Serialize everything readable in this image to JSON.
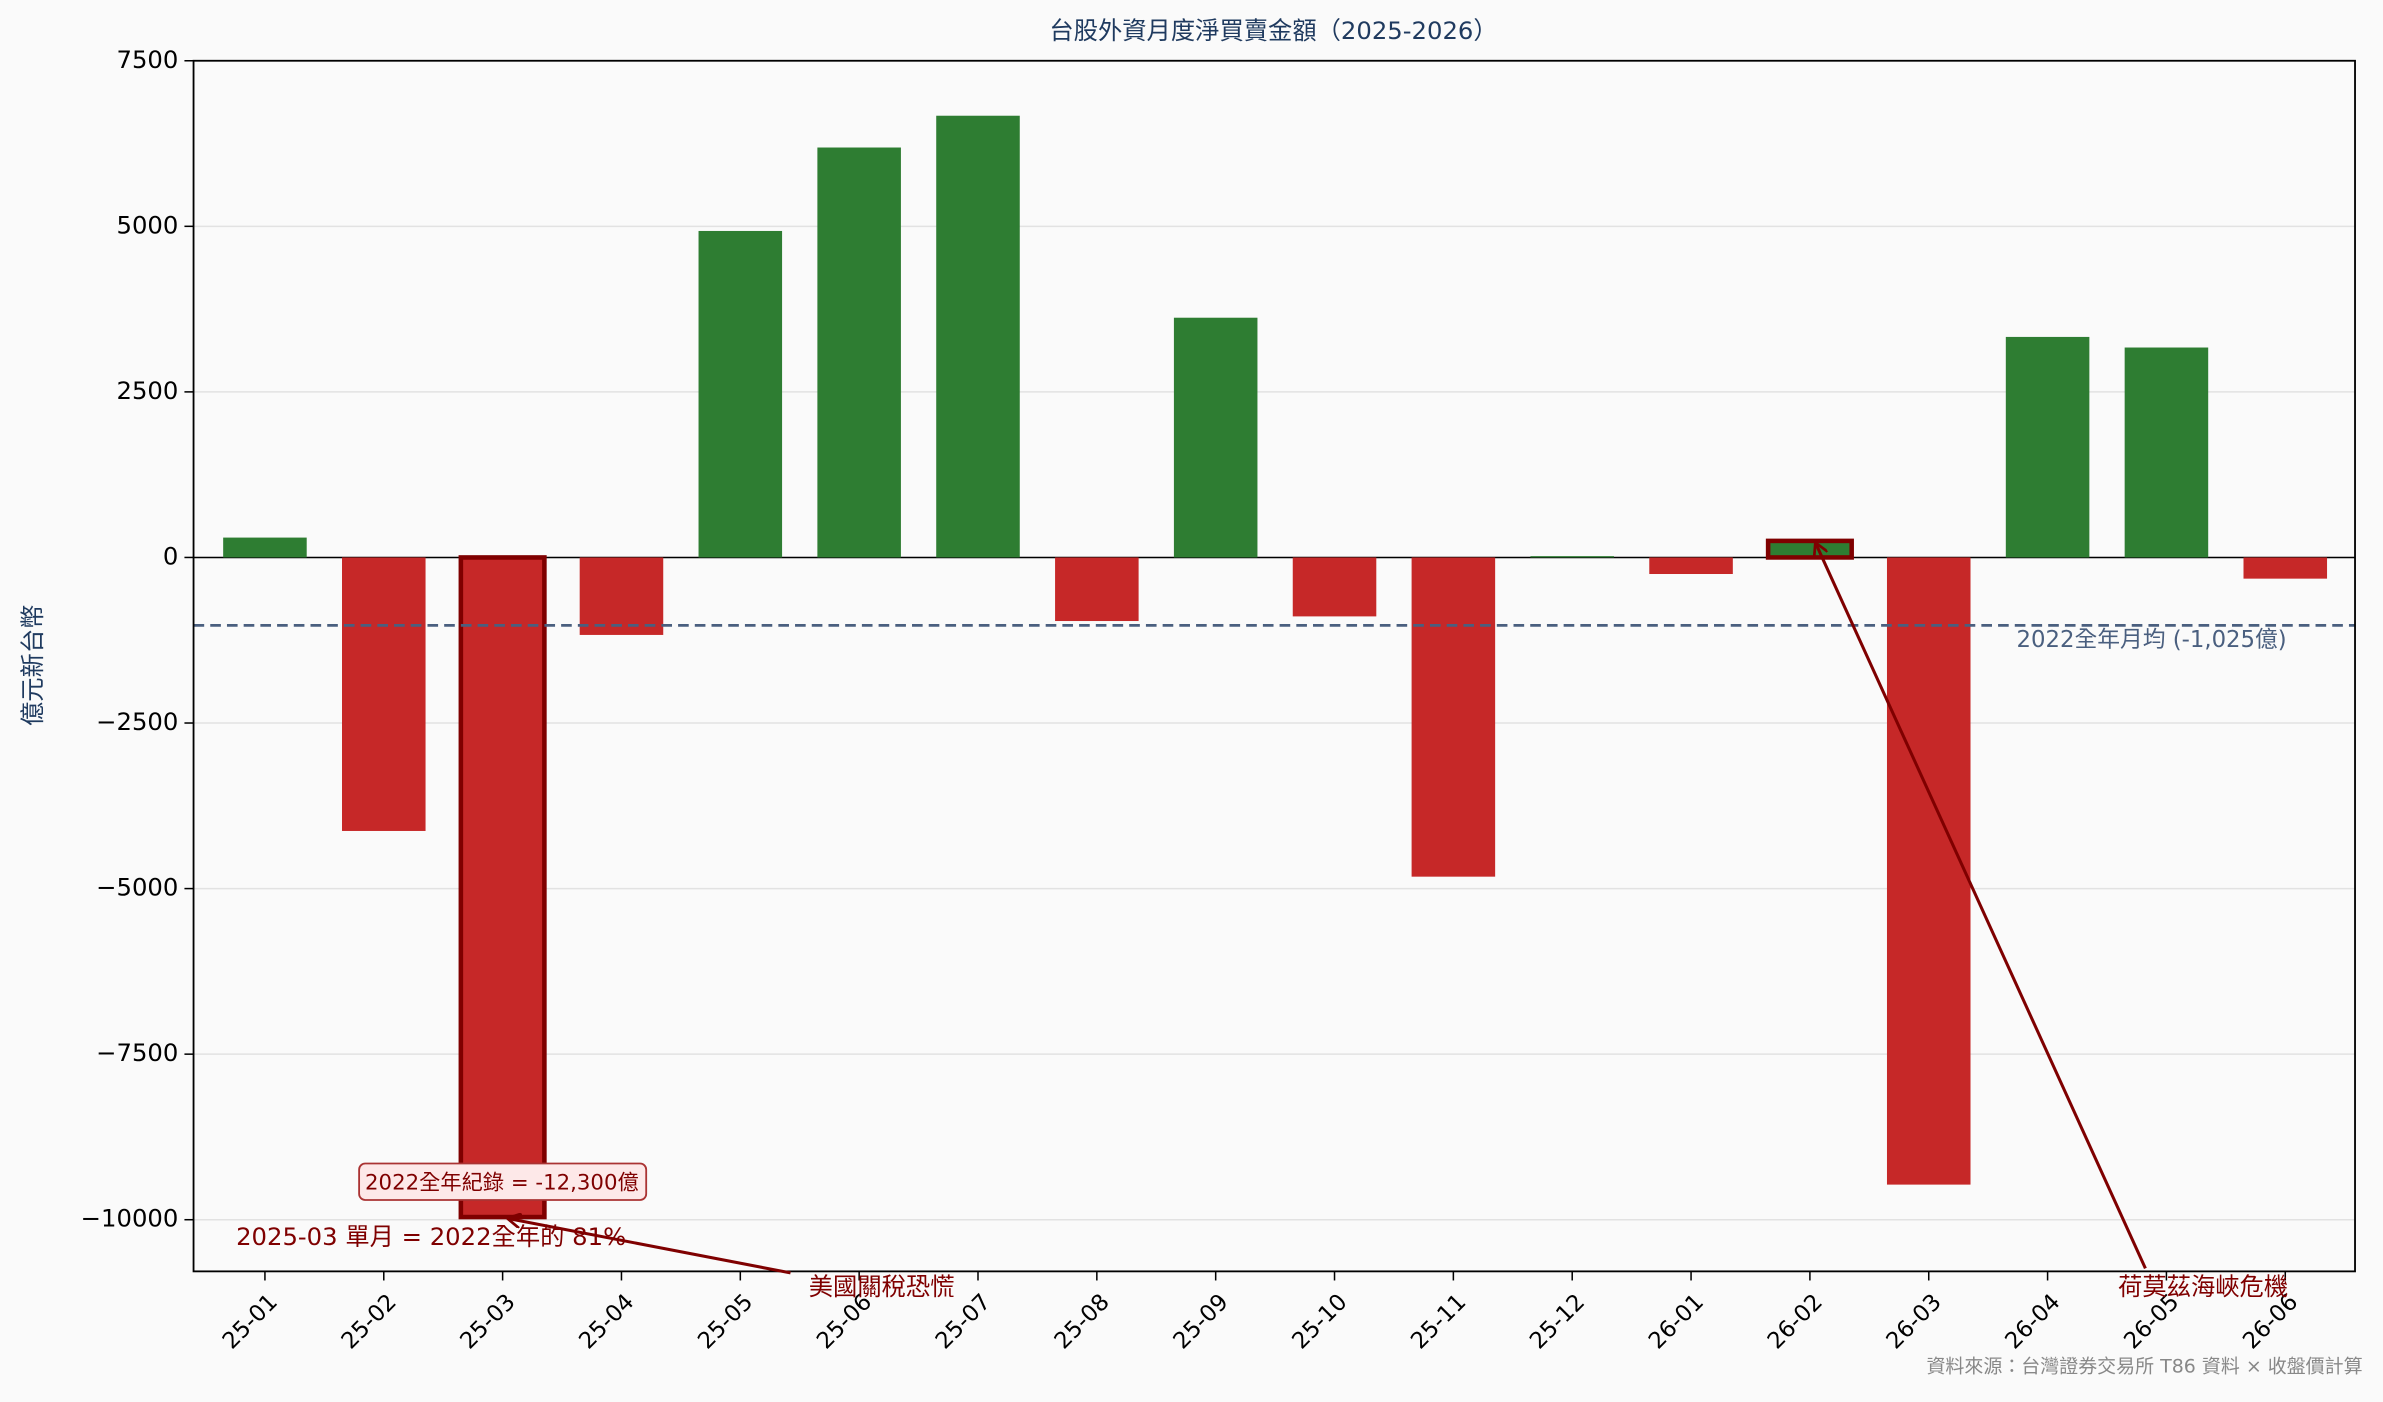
{
  "chart_data": {
    "type": "bar",
    "title": "台股外資月度淨買賣金額（2025-2026）",
    "ylabel": "億元新台幣",
    "categories": [
      "25-01",
      "25-02",
      "25-03",
      "25-04",
      "25-05",
      "25-06",
      "25-07",
      "25-08",
      "25-09",
      "25-10",
      "25-11",
      "25-12",
      "26-01",
      "26-02",
      "26-03",
      "26-04",
      "26-05",
      "26-06"
    ],
    "values": [
      300,
      -4130,
      -9960,
      -1170,
      4930,
      6190,
      6670,
      -960,
      3620,
      -890,
      -4820,
      20,
      -250,
      250,
      -9470,
      3330,
      3170,
      -320
    ],
    "positive_color": "#2e7d32",
    "negative_color": "#c62828",
    "highlight_color": "#7f0000",
    "highlight_indices": [
      2,
      13
    ],
    "ylim": [
      -10780,
      7500
    ],
    "yticks": [
      {
        "value": -10000,
        "label": "−10000"
      },
      {
        "value": -7500,
        "label": "−7500"
      },
      {
        "value": -5000,
        "label": "−5000"
      },
      {
        "value": -2500,
        "label": "−2500"
      },
      0,
      2500,
      5000,
      7500
    ],
    "grid": true,
    "reference_line": {
      "value": -1025,
      "label": "2022全年月均 (-1,025億)",
      "color": "#4a5f7f"
    },
    "annotations": [
      {
        "text": "2022全年紀錄 = -12,300億",
        "target": 2
      },
      {
        "text": "2025-03 單月 = 2022全年的 81%",
        "target": 2
      },
      {
        "text": "美國關稅恐慌",
        "target": 2
      },
      {
        "text": "荷莫茲海峽危機",
        "target": 13
      }
    ],
    "source": "資料來源：台灣證券交易所 T86 資料 × 收盤價計算"
  }
}
